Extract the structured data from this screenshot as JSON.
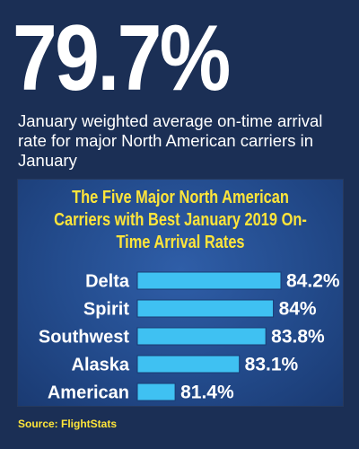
{
  "headline": "79.7%",
  "subheadline": "January weighted average on-time arrival rate for major North American carriers in January",
  "source": "Source: FlightStats",
  "colors": {
    "background": "#1b2f55",
    "panel": "#2a559c",
    "bar": "#3fc1f2",
    "title": "#ffe53a",
    "text": "#ffffff"
  },
  "chart_data": {
    "type": "bar",
    "orientation": "horizontal",
    "title": "The Five Major North American Carriers with Best January 2019 On-Time Arrival Rates",
    "categories": [
      "Delta",
      "Spirit",
      "Southwest",
      "Alaska",
      "American"
    ],
    "values": [
      84.2,
      84,
      83.8,
      83.1,
      81.4
    ],
    "value_labels": [
      "84.2%",
      "84%",
      "83.8%",
      "83.1%",
      "81.4%"
    ],
    "xlim": [
      80.4,
      84.2
    ],
    "xlabel": "",
    "ylabel": "",
    "grid": false,
    "legend": "none"
  }
}
